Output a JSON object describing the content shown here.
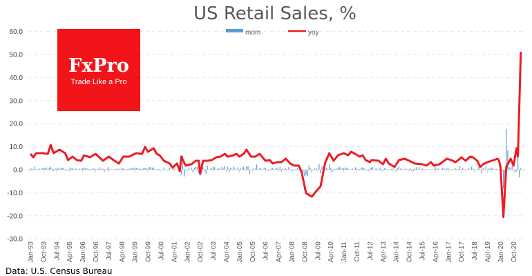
{
  "chart_data": {
    "type": "bar+line",
    "title": "US Retail Sales, %",
    "xlabel": "",
    "ylabel": "",
    "ylim": [
      -30,
      60
    ],
    "yticks": [
      "60.0",
      "50.0",
      "40.0",
      "30.0",
      "20.0",
      "10.0",
      "0.0",
      "-10.0",
      "-20.0",
      "-30.0"
    ],
    "ytick_values": [
      60,
      50,
      40,
      30,
      20,
      10,
      0,
      -10,
      -20,
      -30
    ],
    "grid": true,
    "legend_position": "top-center",
    "x_start": "1993-01",
    "frequency": "monthly",
    "xtick_labels": [
      "Jan-93",
      "Oct-93",
      "Jul-94",
      "Apr-95",
      "Jan-96",
      "Oct-96",
      "Jul-97",
      "Apr-98",
      "Jan-99",
      "Oct-99",
      "Jul-00",
      "Apr-01",
      "Jan-02",
      "Oct-02",
      "Jul-03",
      "Apr-04",
      "Jan-05",
      "Oct-05",
      "Jul-06",
      "Apr-07",
      "Jan-08",
      "Oct-08",
      "Jul-09",
      "Apr-10",
      "Jan-11",
      "Oct-11",
      "Jul-12",
      "Apr-13",
      "Jan-14",
      "Oct-14",
      "Jul-15",
      "Apr-16",
      "Jan-17",
      "Oct-17",
      "Jul-18",
      "Apr-19",
      "Jan-20",
      "Oct-20"
    ],
    "xtick_interval_months": 9,
    "series": [
      {
        "name": "mom",
        "type": "bar",
        "color": "#5b9bd5",
        "values": [
          0.4,
          0.8,
          -0.3,
          1.4,
          0.2,
          0.3,
          0.6,
          0.1,
          0.7,
          0.8,
          0.6,
          1.0,
          0.2,
          0.9,
          1.3,
          0.5,
          -0.6,
          0.6,
          0.4,
          1.0,
          0.3,
          0.6,
          0.8,
          0.9,
          -0.3,
          -0.5,
          0.2,
          0.4,
          0.9,
          0.8,
          -0.2,
          0.7,
          0.3,
          -0.1,
          0.5,
          0.4,
          0.6,
          0.9,
          0.7,
          0.5,
          0.3,
          -0.4,
          0.2,
          0.6,
          0.5,
          0.2,
          0.4,
          0.3,
          1.0,
          0.3,
          0.4,
          -0.8,
          -0.2,
          0.4,
          1.1,
          0.4,
          0.0,
          -0.1,
          0.2,
          0.3,
          0.5,
          0.4,
          0.2,
          0.8,
          0.6,
          -0.3,
          0.2,
          0.3,
          0.5,
          0.7,
          0.5,
          1.0,
          0.8,
          0.6,
          0.9,
          0.5,
          0.4,
          0.3,
          0.8,
          0.9,
          0.6,
          0.4,
          1.1,
          1.2,
          0.8,
          1.0,
          -0.2,
          0.3,
          -0.4,
          0.3,
          0.0,
          0.1,
          1.0,
          -0.1,
          -0.3,
          0.2,
          0.9,
          -0.2,
          -0.3,
          0.8,
          0.2,
          -0.1,
          0.1,
          0.3,
          -2.1,
          6.2,
          -2.9,
          -0.1,
          0.3,
          0.6,
          -0.1,
          1.0,
          -1.0,
          0.8,
          1.2,
          1.3,
          -1.3,
          0.1,
          0.6,
          1.1,
          -0.6,
          -1.7,
          1.8,
          -0.1,
          0.3,
          1.0,
          1.3,
          1.1,
          -0.3,
          0.5,
          0.7,
          0.2,
          1.2,
          0.5,
          1.6,
          -0.2,
          1.3,
          -1.1,
          0.9,
          0.2,
          1.5,
          0.5,
          0.1,
          1.1,
          -0.9,
          0.6,
          0.6,
          1.3,
          -0.4,
          1.4,
          1.5,
          -1.9,
          0.2,
          0.1,
          0.8,
          0.5,
          2.2,
          -0.3,
          0.7,
          0.5,
          -0.2,
          0.6,
          0.9,
          0.0,
          -0.5,
          0.2,
          0.6,
          0.9,
          0.1,
          0.5,
          0.8,
          0.2,
          1.3,
          -0.8,
          0.5,
          0.3,
          0.6,
          0.2,
          1.1,
          -0.3,
          0.1,
          -0.5,
          0.1,
          0.4,
          0.6,
          0.1,
          -0.6,
          -0.6,
          -1.1,
          -2.8,
          -2.4,
          -2.7,
          1.8,
          0.6,
          -1.3,
          -0.2,
          0.5,
          0.8,
          -0.2,
          2.5,
          -1.6,
          1.4,
          1.2,
          -0.2,
          0.7,
          0.4,
          2.3,
          0.6,
          -1.0,
          -0.3,
          0.3,
          0.5,
          0.8,
          1.3,
          0.7,
          0.6,
          0.6,
          1.1,
          0.7,
          0.4,
          -0.1,
          0.2,
          0.5,
          0.1,
          1.1,
          0.5,
          0.3,
          0.3,
          0.8,
          1.0,
          0.6,
          0.1,
          -0.3,
          -0.5,
          0.7,
          0.9,
          1.1,
          -0.1,
          0.5,
          0.5,
          0.2,
          1.0,
          -0.4,
          0.1,
          0.6,
          0.5,
          0.2,
          0.2,
          0.0,
          0.4,
          0.5,
          0.1,
          -0.7,
          0.8,
          1.5,
          0.5,
          0.4,
          0.4,
          0.0,
          0.6,
          -0.2,
          0.3,
          0.5,
          -0.7,
          -0.6,
          0.8,
          1.1,
          0.2,
          1.2,
          -0.1,
          0.6,
          0.2,
          0.1,
          0.1,
          0.2,
          -0.1,
          0.2,
          -0.1,
          -0.2,
          1.3,
          0.3,
          0.6,
          -0.2,
          -0.2,
          0.8,
          0.6,
          0.1,
          0.6,
          0.6,
          0.1,
          -0.2,
          0.3,
          -0.1,
          0.6,
          0.4,
          0.2,
          1.7,
          0.2,
          0.8,
          0.3,
          -0.2,
          0.0,
          0.7,
          0.2,
          1.3,
          0.5,
          0.2,
          0.1,
          0.1,
          1.1,
          0.2,
          -1.6,
          0.9,
          0.2,
          1.7,
          0.0,
          0.6,
          0.5,
          0.7,
          0.5,
          -0.2,
          0.4,
          0.3,
          0.0,
          0.6,
          -0.5,
          -8.2,
          -14.7,
          17.7,
          8.4,
          1.2,
          0.6,
          1.6,
          -0.1,
          -1.1,
          -0.7,
          7.6,
          -3.3,
          0.6
        ]
      },
      {
        "name": "yoy",
        "type": "line",
        "color": "#ed1c24",
        "points": [
          [
            "1993-01",
            6.9
          ],
          [
            "1993-03",
            5.4
          ],
          [
            "1993-05",
            7.2
          ],
          [
            "1993-10",
            7.2
          ],
          [
            "1994-01",
            6.9
          ],
          [
            "1994-03",
            10.8
          ],
          [
            "1994-05",
            7.2
          ],
          [
            "1994-09",
            8.7
          ],
          [
            "1995-01",
            7.2
          ],
          [
            "1995-03",
            4.2
          ],
          [
            "1995-06",
            5.7
          ],
          [
            "1995-09",
            4.2
          ],
          [
            "1995-12",
            3.9
          ],
          [
            "1996-02",
            6.3
          ],
          [
            "1996-06",
            5.4
          ],
          [
            "1996-10",
            6.9
          ],
          [
            "1997-03",
            3.9
          ],
          [
            "1997-07",
            5.7
          ],
          [
            "1997-11",
            3.9
          ],
          [
            "1998-02",
            2.7
          ],
          [
            "1998-05",
            5.7
          ],
          [
            "1998-09",
            5.7
          ],
          [
            "1999-02",
            7.2
          ],
          [
            "1999-06",
            6.9
          ],
          [
            "1999-08",
            9.9
          ],
          [
            "1999-10",
            7.8
          ],
          [
            "2000-02",
            9.3
          ],
          [
            "2000-04",
            6.9
          ],
          [
            "2000-06",
            6.3
          ],
          [
            "2000-09",
            3.9
          ],
          [
            "2001-01",
            2.7
          ],
          [
            "2001-03",
            0.9
          ],
          [
            "2001-06",
            2.7
          ],
          [
            "2001-08",
            -0.6
          ],
          [
            "2001-09",
            5.7
          ],
          [
            "2001-12",
            1.8
          ],
          [
            "2002-04",
            2.4
          ],
          [
            "2002-07",
            3.9
          ],
          [
            "2002-09",
            3.9
          ],
          [
            "2002-10",
            -1.8
          ],
          [
            "2002-12",
            3.9
          ],
          [
            "2003-03",
            3.9
          ],
          [
            "2003-06",
            4.2
          ],
          [
            "2003-09",
            5.4
          ],
          [
            "2003-12",
            5.7
          ],
          [
            "2004-03",
            6.9
          ],
          [
            "2004-05",
            5.7
          ],
          [
            "2004-09",
            6.3
          ],
          [
            "2004-11",
            6.9
          ],
          [
            "2005-01",
            5.7
          ],
          [
            "2005-04",
            6.9
          ],
          [
            "2005-06",
            8.7
          ],
          [
            "2005-09",
            5.7
          ],
          [
            "2005-12",
            5.7
          ],
          [
            "2006-03",
            6.9
          ],
          [
            "2006-05",
            5.4
          ],
          [
            "2006-07",
            3.9
          ],
          [
            "2006-10",
            4.2
          ],
          [
            "2006-12",
            2.7
          ],
          [
            "2007-03",
            3.3
          ],
          [
            "2007-06",
            3.3
          ],
          [
            "2007-09",
            4.8
          ],
          [
            "2007-12",
            2.7
          ],
          [
            "2008-03",
            1.8
          ],
          [
            "2008-06",
            1.8
          ],
          [
            "2008-08",
            -1.2
          ],
          [
            "2008-11",
            -10.2
          ],
          [
            "2009-03",
            -11.7
          ],
          [
            "2009-06",
            -9.3
          ],
          [
            "2009-09",
            -7.2
          ],
          [
            "2009-12",
            2.7
          ],
          [
            "2010-03",
            7.2
          ],
          [
            "2010-06",
            3.9
          ],
          [
            "2010-09",
            6.3
          ],
          [
            "2011-01",
            7.2
          ],
          [
            "2011-04",
            6.3
          ],
          [
            "2011-06",
            7.8
          ],
          [
            "2011-08",
            7.2
          ],
          [
            "2011-12",
            5.7
          ],
          [
            "2012-02",
            6.3
          ],
          [
            "2012-04",
            4.2
          ],
          [
            "2012-07",
            3.3
          ],
          [
            "2012-08",
            4.2
          ],
          [
            "2013-01",
            3.9
          ],
          [
            "2013-04",
            2.4
          ],
          [
            "2013-06",
            4.8
          ],
          [
            "2013-08",
            2.7
          ],
          [
            "2013-12",
            1.2
          ],
          [
            "2014-03",
            4.2
          ],
          [
            "2014-07",
            4.8
          ],
          [
            "2014-10",
            3.9
          ],
          [
            "2015-02",
            2.7
          ],
          [
            "2015-07",
            2.4
          ],
          [
            "2015-10",
            1.8
          ],
          [
            "2016-01",
            3.3
          ],
          [
            "2016-03",
            1.8
          ],
          [
            "2016-07",
            2.4
          ],
          [
            "2016-12",
            4.8
          ],
          [
            "2017-03",
            4.2
          ],
          [
            "2017-06",
            3.3
          ],
          [
            "2017-09",
            4.8
          ],
          [
            "2017-10",
            5.4
          ],
          [
            "2018-01",
            3.9
          ],
          [
            "2018-04",
            5.7
          ],
          [
            "2018-06",
            5.4
          ],
          [
            "2018-09",
            3.9
          ],
          [
            "2018-11",
            1.2
          ],
          [
            "2019-01",
            2.4
          ],
          [
            "2019-04",
            3.3
          ],
          [
            "2019-07",
            3.9
          ],
          [
            "2019-11",
            4.8
          ],
          [
            "2019-12",
            3.9
          ],
          [
            "2020-01",
            1.2
          ],
          [
            "2020-03",
            -20.5
          ],
          [
            "2020-05",
            1.2
          ],
          [
            "2020-08",
            4.8
          ],
          [
            "2020-10",
            1.8
          ],
          [
            "2020-12",
            9.3
          ],
          [
            "2021-01",
            5.7
          ],
          [
            "2021-03",
            51.2
          ]
        ]
      }
    ]
  },
  "logo": {
    "brand": "FxPro",
    "tagline": "Trade Like a Pro",
    "color": "#f31419"
  },
  "source": "Data: U.S. Census Bureau"
}
